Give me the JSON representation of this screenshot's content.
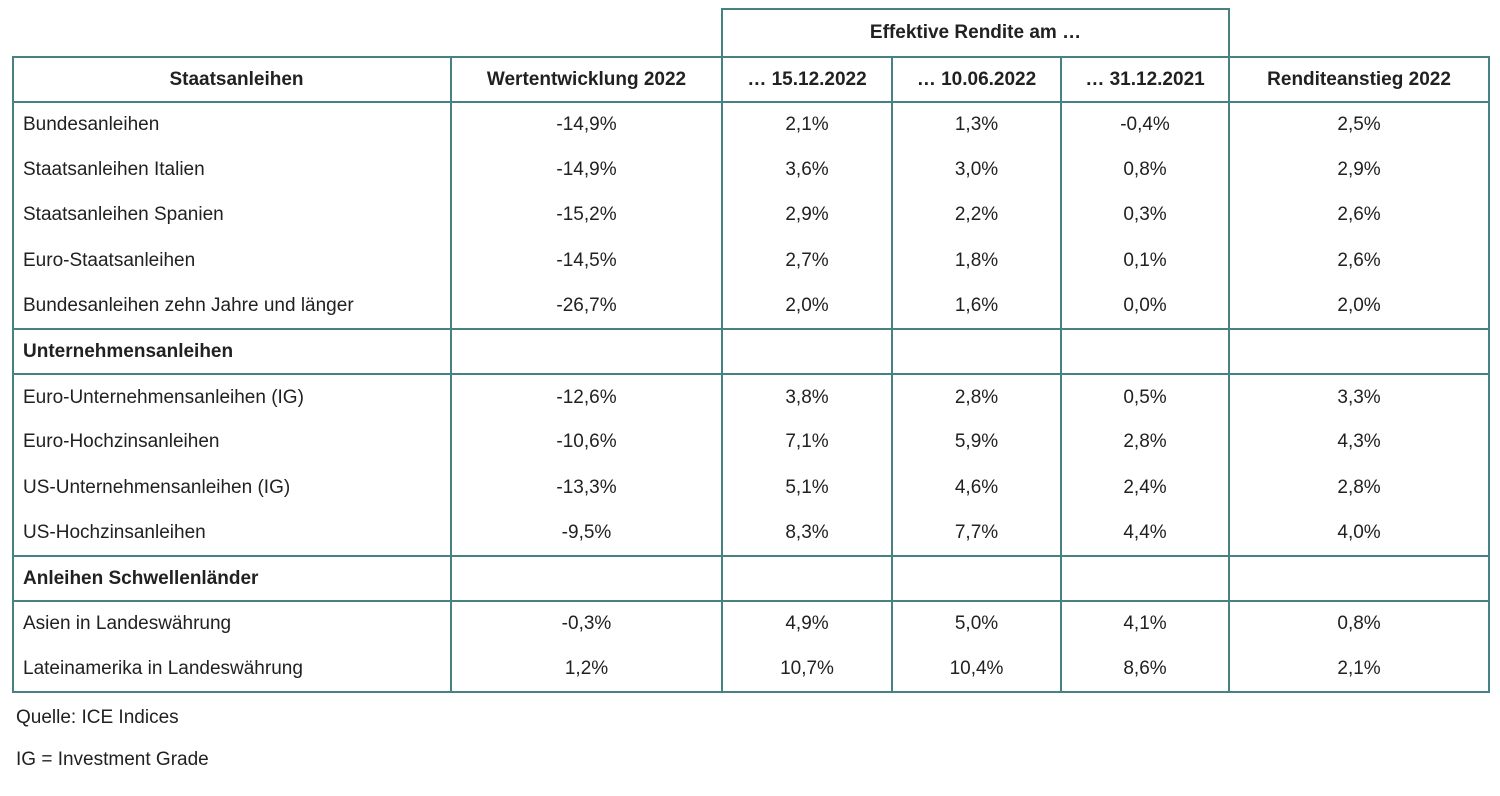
{
  "chart_data": {
    "type": "table",
    "group_header": "Effektive Rendite am …",
    "group_header_spans_columns": [
      "… 15.12.2022",
      "… 10.06.2022",
      "… 31.12.2021"
    ],
    "columns": [
      "Staatsanleihen",
      "Wertentwicklung 2022",
      "… 15.12.2022",
      "… 10.06.2022",
      "… 31.12.2021",
      "Renditeanstieg 2022"
    ],
    "rows": [
      {
        "type": "data",
        "label": "Bundesanleihen",
        "values": [
          "-14,9%",
          "2,1%",
          "1,3%",
          "-0,4%",
          "2,5%"
        ]
      },
      {
        "type": "data",
        "label": "Staatsanleihen Italien",
        "values": [
          "-14,9%",
          "3,6%",
          "3,0%",
          "0,8%",
          "2,9%"
        ]
      },
      {
        "type": "data",
        "label": "Staatsanleihen Spanien",
        "values": [
          "-15,2%",
          "2,9%",
          "2,2%",
          "0,3%",
          "2,6%"
        ]
      },
      {
        "type": "data",
        "label": "Euro-Staatsanleihen",
        "values": [
          "-14,5%",
          "2,7%",
          "1,8%",
          "0,1%",
          "2,6%"
        ]
      },
      {
        "type": "data",
        "label": "Bundesanleihen zehn Jahre und länger",
        "values": [
          "-26,7%",
          "2,0%",
          "1,6%",
          "0,0%",
          "2,0%"
        ]
      },
      {
        "type": "section",
        "label": "Unternehmensanleihen",
        "values": [
          "",
          "",
          "",
          "",
          ""
        ]
      },
      {
        "type": "data",
        "label": "Euro-Unternehmensanleihen (IG)",
        "values": [
          "-12,6%",
          "3,8%",
          "2,8%",
          "0,5%",
          "3,3%"
        ]
      },
      {
        "type": "data",
        "label": "Euro-Hochzinsanleihen",
        "values": [
          "-10,6%",
          "7,1%",
          "5,9%",
          "2,8%",
          "4,3%"
        ]
      },
      {
        "type": "data",
        "label": "US-Unternehmensanleihen (IG)",
        "values": [
          "-13,3%",
          "5,1%",
          "4,6%",
          "2,4%",
          "2,8%"
        ]
      },
      {
        "type": "data",
        "label": "US-Hochzinsanleihen",
        "values": [
          "-9,5%",
          "8,3%",
          "7,7%",
          "4,4%",
          "4,0%"
        ]
      },
      {
        "type": "section",
        "label": "Anleihen Schwellenländer",
        "values": [
          "",
          "",
          "",
          "",
          ""
        ]
      },
      {
        "type": "data",
        "label": "Asien in Landeswährung",
        "values": [
          "-0,3%",
          "4,9%",
          "5,0%",
          "4,1%",
          "0,8%"
        ]
      },
      {
        "type": "data",
        "label": "Lateinamerika in Landeswährung",
        "values": [
          "1,2%",
          "10,7%",
          "10,4%",
          "8,6%",
          "2,1%"
        ]
      }
    ]
  },
  "footnotes": {
    "source": "Quelle: ICE Indices",
    "abbreviation": "IG = Investment Grade"
  },
  "colors": {
    "border": "#468284",
    "text": "#212121"
  }
}
